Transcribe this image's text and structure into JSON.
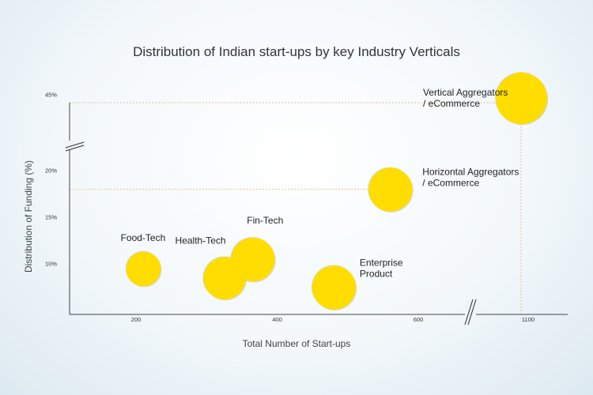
{
  "chart_data": {
    "type": "bubble",
    "title": "Distribution of Indian start-ups by key Industry Verticals",
    "xlabel": "Total Number of Start-ups",
    "ylabel": "Distribution of Funding (%)",
    "x_ticks": [
      200,
      400,
      600,
      1100
    ],
    "y_ticks": [
      "10%",
      "15%",
      "20%",
      "45%"
    ],
    "x_axis_break": "between 600 and 1100",
    "y_axis_break": "between 20% and 45%",
    "bubble_color": "#FFDD00",
    "reference_line_color": "#F0C08A",
    "reference_lines": [
      {
        "series": "Vertical Aggregators / eCommerce",
        "y": 45
      },
      {
        "series": "Horizontal Aggregators / eCommerce",
        "y": 18
      }
    ],
    "series": [
      {
        "name": "Food-Tech",
        "label_lines": [
          "Food-Tech"
        ],
        "x": 210,
        "y": 9.5,
        "size": 1.0
      },
      {
        "name": "Health-Tech",
        "label_lines": [
          "Health-Tech"
        ],
        "x": 325,
        "y": 8.5,
        "size": 1.5
      },
      {
        "name": "Fin-Tech",
        "label_lines": [
          "Fin-Tech"
        ],
        "x": 365,
        "y": 10.5,
        "size": 1.6
      },
      {
        "name": "Enterprise Product",
        "label_lines": [
          "Enterprise",
          "Product"
        ],
        "x": 480,
        "y": 7.5,
        "size": 1.6
      },
      {
        "name": "Horizontal Aggregators / eCommerce",
        "label_lines": [
          "Horizontal Aggregators",
          "/ eCommerce"
        ],
        "x": 560,
        "y": 18,
        "size": 1.6
      },
      {
        "name": "Vertical Aggregators / eCommerce",
        "label_lines": [
          "Vertical Aggregators",
          "/ eCommerce"
        ],
        "x": 1080,
        "y": 44,
        "size": 2.2
      }
    ],
    "grid": false,
    "legend": "none"
  }
}
